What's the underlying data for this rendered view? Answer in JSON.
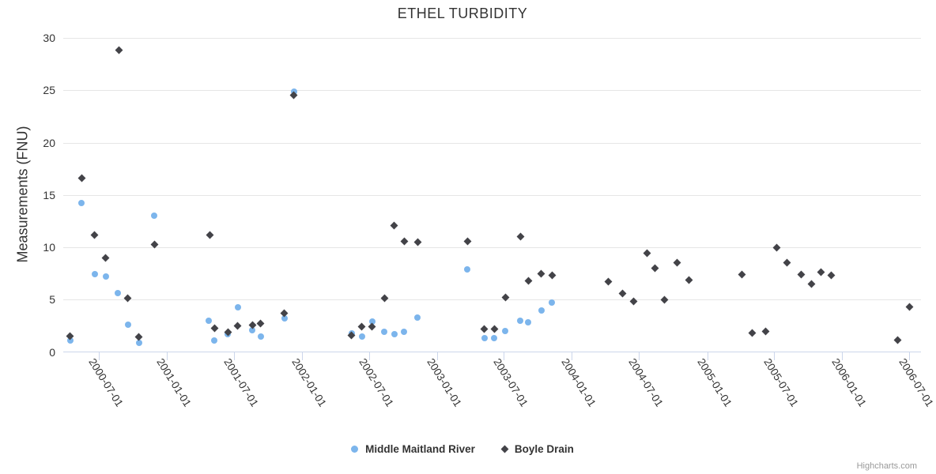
{
  "chart": {
    "title": "ETHEL TURBIDITY",
    "credit": "Highcharts.com"
  },
  "chart_data": {
    "type": "scatter",
    "title": "ETHEL TURBIDITY",
    "xlabel": "",
    "ylabel": "Measurements (FNU)",
    "ylim": [
      0,
      30
    ],
    "yticks": [
      0,
      5,
      10,
      15,
      20,
      25,
      30
    ],
    "xticks": [
      "2000-07-01",
      "2001-01-01",
      "2001-07-01",
      "2002-01-01",
      "2002-07-01",
      "2003-01-01",
      "2003-07-01",
      "2004-01-01",
      "2004-07-01",
      "2005-01-01",
      "2005-07-01",
      "2006-01-01",
      "2006-07-01"
    ],
    "x_range": [
      "2000-03-26",
      "2006-08-02"
    ],
    "grid": "horizontal",
    "legend_position": "bottom",
    "style": {
      "grid_color": "#e6e6e6",
      "axis_line_color": "#ccd6eb",
      "text_color": "#333333",
      "credit_color": "#999999"
    },
    "series": [
      {
        "name": "Middle Maitland River",
        "color": "#7cb5ec",
        "marker": "circle",
        "points": [
          [
            "2000-04-15",
            1.1
          ],
          [
            "2000-05-15",
            14.2
          ],
          [
            "2000-06-20",
            7.4
          ],
          [
            "2000-07-20",
            7.2
          ],
          [
            "2000-08-22",
            5.6
          ],
          [
            "2000-09-18",
            2.6
          ],
          [
            "2000-10-18",
            0.9
          ],
          [
            "2000-11-28",
            13.0
          ],
          [
            "2001-04-25",
            3.0
          ],
          [
            "2001-05-10",
            1.1
          ],
          [
            "2001-06-15",
            1.7
          ],
          [
            "2001-07-12",
            4.3
          ],
          [
            "2001-08-20",
            2.1
          ],
          [
            "2001-09-12",
            1.5
          ],
          [
            "2001-11-15",
            3.2
          ],
          [
            "2001-12-10",
            24.9
          ],
          [
            "2002-05-15",
            1.8
          ],
          [
            "2002-06-12",
            1.5
          ],
          [
            "2002-07-10",
            2.9
          ],
          [
            "2002-08-12",
            1.9
          ],
          [
            "2002-09-08",
            1.7
          ],
          [
            "2002-10-05",
            1.9
          ],
          [
            "2002-11-10",
            3.3
          ],
          [
            "2003-03-25",
            7.9
          ],
          [
            "2003-05-10",
            1.3
          ],
          [
            "2003-06-05",
            1.3
          ],
          [
            "2003-07-05",
            2.0
          ],
          [
            "2003-08-15",
            3.0
          ],
          [
            "2003-09-05",
            2.8
          ],
          [
            "2003-10-10",
            4.0
          ],
          [
            "2003-11-08",
            4.7
          ]
        ]
      },
      {
        "name": "Boyle Drain",
        "color": "#434348",
        "marker": "diamond",
        "points": [
          [
            "2000-04-15",
            1.5
          ],
          [
            "2000-05-15",
            16.6
          ],
          [
            "2000-06-20",
            11.2
          ],
          [
            "2000-07-20",
            9.0
          ],
          [
            "2000-08-25",
            28.8
          ],
          [
            "2000-09-18",
            5.1
          ],
          [
            "2000-10-18",
            1.4
          ],
          [
            "2000-11-28",
            10.3
          ],
          [
            "2001-04-28",
            11.2
          ],
          [
            "2001-05-10",
            2.3
          ],
          [
            "2001-06-15",
            1.9
          ],
          [
            "2001-07-12",
            2.5
          ],
          [
            "2001-08-20",
            2.6
          ],
          [
            "2001-09-12",
            2.7
          ],
          [
            "2001-11-15",
            3.7
          ],
          [
            "2001-12-10",
            24.5
          ],
          [
            "2002-05-15",
            1.6
          ],
          [
            "2002-06-12",
            2.4
          ],
          [
            "2002-07-10",
            2.4
          ],
          [
            "2002-08-12",
            5.1
          ],
          [
            "2002-09-08",
            12.1
          ],
          [
            "2002-10-05",
            10.6
          ],
          [
            "2002-11-10",
            10.5
          ],
          [
            "2003-03-25",
            10.6
          ],
          [
            "2003-05-10",
            2.2
          ],
          [
            "2003-06-05",
            2.2
          ],
          [
            "2003-07-05",
            5.2
          ],
          [
            "2003-08-15",
            11.0
          ],
          [
            "2003-09-05",
            6.8
          ],
          [
            "2003-10-10",
            7.5
          ],
          [
            "2003-11-08",
            7.3
          ],
          [
            "2004-04-08",
            6.7
          ],
          [
            "2004-05-18",
            5.6
          ],
          [
            "2004-06-15",
            4.8
          ],
          [
            "2004-07-22",
            9.4
          ],
          [
            "2004-08-12",
            8.0
          ],
          [
            "2004-09-08",
            5.0
          ],
          [
            "2004-10-12",
            8.5
          ],
          [
            "2004-11-12",
            6.9
          ],
          [
            "2005-04-05",
            7.4
          ],
          [
            "2005-05-03",
            1.8
          ],
          [
            "2005-06-07",
            2.0
          ],
          [
            "2005-07-08",
            10.0
          ],
          [
            "2005-08-05",
            8.5
          ],
          [
            "2005-09-12",
            7.4
          ],
          [
            "2005-10-10",
            6.5
          ],
          [
            "2005-11-05",
            7.6
          ],
          [
            "2005-12-02",
            7.3
          ],
          [
            "2006-06-01",
            1.1
          ],
          [
            "2006-07-01",
            4.3
          ]
        ]
      }
    ]
  }
}
